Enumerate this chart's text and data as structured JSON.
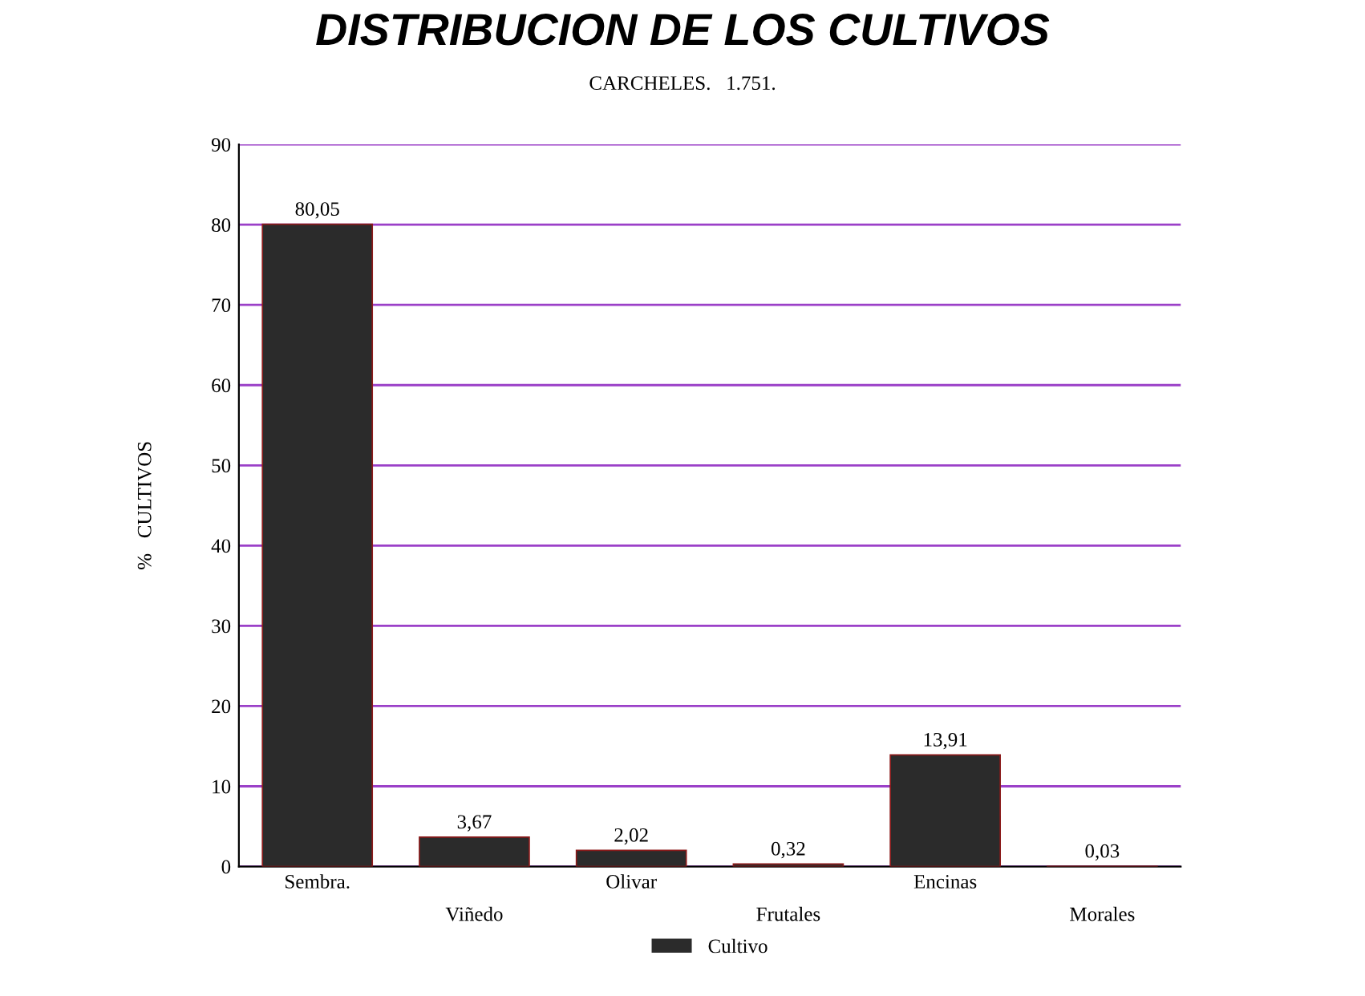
{
  "chart_data": {
    "type": "bar",
    "title": "DISTRIBUCION DE LOS CULTIVOS",
    "subtitle": "CARCHELES.   1.751.",
    "ylabel": "%   CULTIVOS",
    "categories": [
      "Sembra.",
      "Viñedo",
      "Olivar",
      "Frutales",
      "Encinas",
      "Morales"
    ],
    "series": [
      {
        "name": "Cultivo",
        "color": "#2b2b2b",
        "values": [
          80.05,
          3.67,
          2.02,
          0.32,
          13.91,
          0.03
        ],
        "value_labels": [
          "80,05",
          "3,67",
          "2,02",
          "0,32",
          "13,91",
          "0,03"
        ]
      }
    ],
    "ylim": [
      0,
      90
    ],
    "yticks": [
      0,
      10,
      20,
      30,
      40,
      50,
      60,
      70,
      80,
      90
    ],
    "grid": "y",
    "legend": "bottom"
  }
}
